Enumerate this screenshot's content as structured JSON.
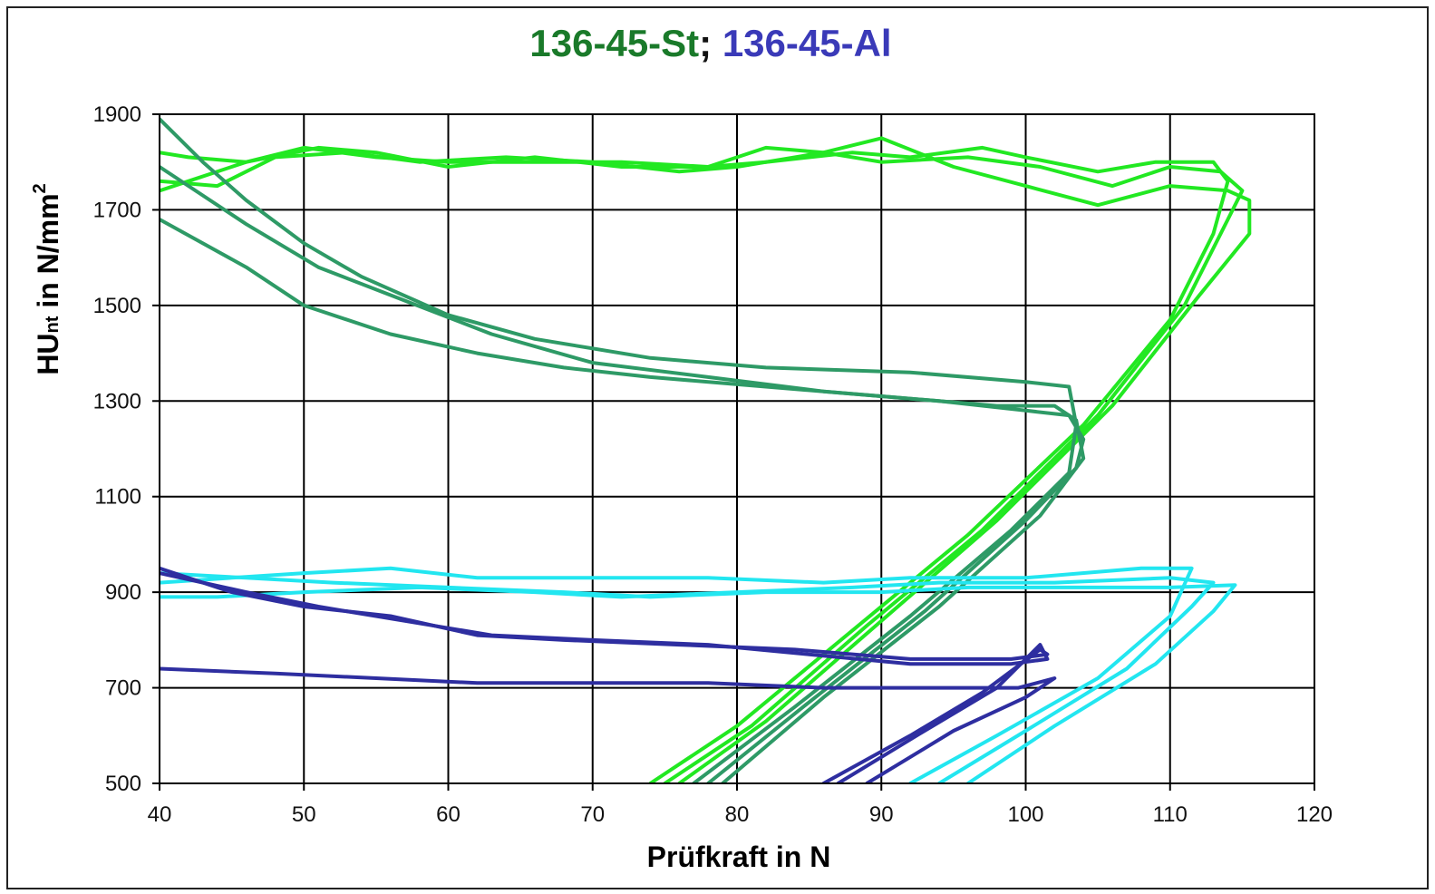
{
  "chart_data": {
    "type": "line",
    "title_parts": [
      {
        "text": "136-45-St",
        "color": "#1a7a2a"
      },
      {
        "text": "; ",
        "color": "#111111"
      },
      {
        "text": "136-45-Al",
        "color": "#3a3ab8"
      }
    ],
    "xlabel": "Prüfkraft in N",
    "ylabel_main": "HU",
    "ylabel_sub": "nt",
    "ylabel_tail": " in N/mm",
    "ylabel_sup": "2",
    "xlim": [
      40,
      120
    ],
    "ylim": [
      500,
      1900
    ],
    "xticks": [
      "40",
      "50",
      "60",
      "70",
      "80",
      "90",
      "100",
      "110",
      "120"
    ],
    "yticks": [
      "500",
      "700",
      "900",
      "1100",
      "1300",
      "1500",
      "1700",
      "1900"
    ],
    "grid": true,
    "colors": {
      "st_load": "#22e822",
      "st_unload": "#2e9a66",
      "al_load": "#22e6f0",
      "al_unload": "#2e2ea0"
    },
    "series": [
      {
        "color_key": "st_load",
        "points": [
          [
            74,
            500
          ],
          [
            80,
            620
          ],
          [
            88,
            820
          ],
          [
            96,
            1020
          ],
          [
            104,
            1250
          ],
          [
            110,
            1470
          ],
          [
            113,
            1650
          ],
          [
            114,
            1760
          ],
          [
            113,
            1800
          ],
          [
            109,
            1800
          ],
          [
            105,
            1780
          ],
          [
            100,
            1810
          ],
          [
            97,
            1830
          ],
          [
            92,
            1810
          ],
          [
            88,
            1820
          ],
          [
            82,
            1800
          ],
          [
            78,
            1790
          ],
          [
            72,
            1800
          ],
          [
            66,
            1800
          ],
          [
            60,
            1800
          ],
          [
            55,
            1810
          ],
          [
            50,
            1830
          ],
          [
            46,
            1800
          ],
          [
            42,
            1760
          ],
          [
            40,
            1740
          ]
        ]
      },
      {
        "color_key": "st_load",
        "points": [
          [
            75,
            500
          ],
          [
            81,
            620
          ],
          [
            89,
            830
          ],
          [
            97,
            1030
          ],
          [
            105,
            1270
          ],
          [
            111,
            1500
          ],
          [
            114,
            1680
          ],
          [
            115,
            1740
          ],
          [
            113.5,
            1780
          ],
          [
            110,
            1790
          ],
          [
            106,
            1750
          ],
          [
            101,
            1790
          ],
          [
            96,
            1810
          ],
          [
            90,
            1800
          ],
          [
            86,
            1820
          ],
          [
            80,
            1790
          ],
          [
            76,
            1780
          ],
          [
            70,
            1800
          ],
          [
            64,
            1810
          ],
          [
            58,
            1800
          ],
          [
            53,
            1820
          ],
          [
            48,
            1810
          ],
          [
            44,
            1750
          ],
          [
            40,
            1760
          ]
        ]
      },
      {
        "color_key": "st_load",
        "points": [
          [
            76,
            500
          ],
          [
            82,
            630
          ],
          [
            90,
            840
          ],
          [
            98,
            1050
          ],
          [
            106,
            1290
          ],
          [
            112,
            1520
          ],
          [
            115.5,
            1650
          ],
          [
            115.5,
            1720
          ],
          [
            114,
            1740
          ],
          [
            110,
            1750
          ],
          [
            105,
            1710
          ],
          [
            100,
            1750
          ],
          [
            95,
            1790
          ],
          [
            90,
            1850
          ],
          [
            86,
            1820
          ],
          [
            82,
            1830
          ],
          [
            78,
            1790
          ],
          [
            72,
            1790
          ],
          [
            66,
            1810
          ],
          [
            60,
            1790
          ],
          [
            55,
            1820
          ],
          [
            51,
            1830
          ],
          [
            46,
            1800
          ],
          [
            42,
            1810
          ],
          [
            40,
            1820
          ]
        ]
      },
      {
        "color_key": "st_unload",
        "points": [
          [
            77,
            500
          ],
          [
            84,
            660
          ],
          [
            92,
            850
          ],
          [
            99,
            1030
          ],
          [
            103,
            1150
          ],
          [
            103.5,
            1250
          ],
          [
            103,
            1330
          ],
          [
            100,
            1340
          ],
          [
            92,
            1360
          ],
          [
            82,
            1370
          ],
          [
            74,
            1390
          ],
          [
            66,
            1430
          ],
          [
            60,
            1480
          ],
          [
            54,
            1560
          ],
          [
            50,
            1630
          ],
          [
            46,
            1720
          ],
          [
            43,
            1800
          ],
          [
            40,
            1890
          ]
        ]
      },
      {
        "color_key": "st_unload",
        "points": [
          [
            78,
            500
          ],
          [
            85,
            670
          ],
          [
            93,
            860
          ],
          [
            100,
            1050
          ],
          [
            103.5,
            1160
          ],
          [
            104,
            1220
          ],
          [
            103,
            1270
          ],
          [
            100,
            1280
          ],
          [
            94,
            1300
          ],
          [
            86,
            1320
          ],
          [
            78,
            1350
          ],
          [
            70,
            1380
          ],
          [
            63,
            1440
          ],
          [
            57,
            1510
          ],
          [
            51,
            1580
          ],
          [
            46,
            1670
          ],
          [
            40,
            1790
          ]
        ]
      },
      {
        "color_key": "st_unload",
        "points": [
          [
            79,
            500
          ],
          [
            86,
            680
          ],
          [
            94,
            870
          ],
          [
            101,
            1060
          ],
          [
            104,
            1180
          ],
          [
            103.5,
            1260
          ],
          [
            102,
            1290
          ],
          [
            98,
            1290
          ],
          [
            90,
            1310
          ],
          [
            82,
            1330
          ],
          [
            74,
            1350
          ],
          [
            68,
            1370
          ],
          [
            62,
            1400
          ],
          [
            56,
            1440
          ],
          [
            50,
            1500
          ],
          [
            46,
            1580
          ],
          [
            40,
            1680
          ]
        ]
      },
      {
        "color_key": "al_load",
        "points": [
          [
            92,
            500
          ],
          [
            98,
            600
          ],
          [
            105,
            720
          ],
          [
            110,
            850
          ],
          [
            111.5,
            950
          ],
          [
            108,
            950
          ],
          [
            100,
            930
          ],
          [
            92,
            930
          ],
          [
            86,
            920
          ],
          [
            78,
            930
          ],
          [
            70,
            930
          ],
          [
            62,
            930
          ],
          [
            56,
            950
          ],
          [
            50,
            940
          ],
          [
            45,
            930
          ],
          [
            40,
            920
          ]
        ]
      },
      {
        "color_key": "al_load",
        "points": [
          [
            94,
            500
          ],
          [
            100,
            610
          ],
          [
            107,
            740
          ],
          [
            111.5,
            870
          ],
          [
            113,
            920
          ],
          [
            110,
            930
          ],
          [
            102,
            920
          ],
          [
            94,
            920
          ],
          [
            88,
            910
          ],
          [
            80,
            900
          ],
          [
            72,
            890
          ],
          [
            66,
            900
          ],
          [
            58,
            910
          ],
          [
            50,
            900
          ],
          [
            44,
            890
          ],
          [
            40,
            890
          ]
        ]
      },
      {
        "color_key": "al_load",
        "points": [
          [
            96,
            500
          ],
          [
            102,
            620
          ],
          [
            109,
            750
          ],
          [
            113,
            860
          ],
          [
            114.5,
            915
          ],
          [
            110,
            910
          ],
          [
            104,
            910
          ],
          [
            96,
            910
          ],
          [
            90,
            900
          ],
          [
            82,
            900
          ],
          [
            74,
            890
          ],
          [
            68,
            900
          ],
          [
            60,
            910
          ],
          [
            52,
            920
          ],
          [
            46,
            930
          ],
          [
            40,
            940
          ]
        ]
      },
      {
        "color_key": "al_unload",
        "points": [
          [
            86,
            500
          ],
          [
            92,
            600
          ],
          [
            97,
            690
          ],
          [
            101,
            780
          ],
          [
            101.5,
            770
          ],
          [
            99,
            760
          ],
          [
            92,
            760
          ],
          [
            84,
            780
          ],
          [
            76,
            790
          ],
          [
            68,
            800
          ],
          [
            62,
            810
          ],
          [
            56,
            850
          ],
          [
            50,
            870
          ],
          [
            45,
            900
          ],
          [
            40,
            950
          ]
        ]
      },
      {
        "color_key": "al_unload",
        "points": [
          [
            87,
            500
          ],
          [
            93,
            610
          ],
          [
            98,
            700
          ],
          [
            101,
            790
          ],
          [
            101.5,
            760
          ],
          [
            99,
            750
          ],
          [
            92,
            750
          ],
          [
            85,
            770
          ],
          [
            78,
            790
          ],
          [
            70,
            800
          ],
          [
            63,
            810
          ],
          [
            57,
            840
          ],
          [
            51,
            870
          ],
          [
            46,
            900
          ],
          [
            40,
            940
          ]
        ]
      },
      {
        "color_key": "al_unload",
        "points": [
          [
            89,
            500
          ],
          [
            95,
            610
          ],
          [
            100,
            680
          ],
          [
            102,
            720
          ],
          [
            99.5,
            700
          ],
          [
            94,
            700
          ],
          [
            86,
            700
          ],
          [
            78,
            710
          ],
          [
            70,
            710
          ],
          [
            62,
            710
          ],
          [
            55,
            720
          ],
          [
            48,
            730
          ],
          [
            40,
            740
          ]
        ]
      }
    ]
  }
}
